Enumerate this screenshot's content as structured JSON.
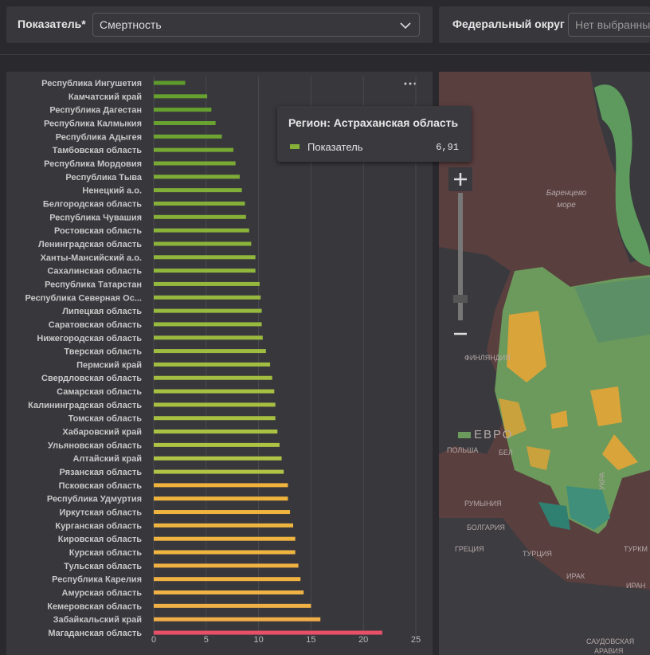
{
  "filters": {
    "indicator_label": "Показатель*",
    "indicator_value": "Смертность",
    "district_label": "Федеральный округ",
    "district_value": "Нет выбранны"
  },
  "chart_data": {
    "type": "hbar",
    "categories": [
      "Республика Ингушетия",
      "Камчатский край",
      "Республика Дагестан",
      "Республика Калмыкия",
      "Республика Адыгея",
      "Тамбовская область",
      "Республика Мордовия",
      "Республика Тыва",
      "Ненецкий а.о.",
      "Белгородская область",
      "Республика Чувашия",
      "Ростовская область",
      "Ленинградская область",
      "Ханты-Мансийский а.о.",
      "Сахалинская область",
      "Республика Татарстан",
      "Республика Северная Ос...",
      "Липецкая область",
      "Саратовская область",
      "Нижегородская область",
      "Тверская область",
      "Пермский край",
      "Свердловская область",
      "Самарская область",
      "Калининградская область",
      "Томская область",
      "Хабаровский край",
      "Ульяновская область",
      "Алтайский край",
      "Рязанская область",
      "Псковская область",
      "Республика Удмуртия",
      "Иркутская область",
      "Курганская область",
      "Кировская область",
      "Курская область",
      "Тульская область",
      "Республика Карелия",
      "Амурская область",
      "Кемеровская область",
      "Забайкальский край",
      "Магаданская область"
    ],
    "values": [
      3.0,
      5.1,
      5.5,
      5.9,
      6.5,
      7.6,
      7.8,
      8.2,
      8.4,
      8.7,
      8.8,
      9.1,
      9.3,
      9.7,
      9.7,
      10.1,
      10.2,
      10.3,
      10.3,
      10.4,
      10.7,
      11.1,
      11.3,
      11.5,
      11.6,
      11.6,
      11.8,
      12.0,
      12.2,
      12.4,
      12.8,
      12.8,
      13.0,
      13.3,
      13.5,
      13.5,
      13.8,
      14.0,
      14.3,
      15.0,
      15.9,
      21.8
    ],
    "colors": [
      "#5e9a2c",
      "#66a02e",
      "#66a02e",
      "#6aa230",
      "#6ea432",
      "#76a834",
      "#78aa34",
      "#7eac36",
      "#80ae36",
      "#84b038",
      "#86b038",
      "#8ab23a",
      "#8cb43a",
      "#90b63c",
      "#90b63c",
      "#94b83c",
      "#96b83e",
      "#98ba3e",
      "#98ba3e",
      "#9aba3e",
      "#9ebc40",
      "#a2be40",
      "#a4be42",
      "#a6c042",
      "#a8c042",
      "#a8c042",
      "#aac244",
      "#aec244",
      "#b0c446",
      "#b2c446",
      "#f0b43c",
      "#f0b43c",
      "#f0b43e",
      "#f0b440",
      "#f0b440",
      "#f0b440",
      "#f0b242",
      "#f0b242",
      "#f0b244",
      "#f0b046",
      "#f0ae48",
      "#e8506a"
    ],
    "xlim": [
      0,
      25
    ],
    "xticks": [
      0,
      5,
      10,
      15,
      20,
      25
    ],
    "grid": true
  },
  "map": {
    "labels": [
      "Баренцево",
      "море",
      "ФИНЛЯНДИЯ",
      "ЕВРО",
      "ПОЛЬША",
      "БЕЛ",
      "РУМЫНИЯ",
      "БОЛГАРИЯ",
      "ГРЕЦИЯ",
      "ТУРЦИЯ",
      "ИРАК",
      "ИРАН",
      "САУДОВСКАЯ",
      "АРАВИЯ",
      "ТУРКМ",
      "УКРА"
    ],
    "tooltip": {
      "title": "Регион: Астраханская область",
      "name": "Показатель",
      "value": "6,91"
    }
  }
}
